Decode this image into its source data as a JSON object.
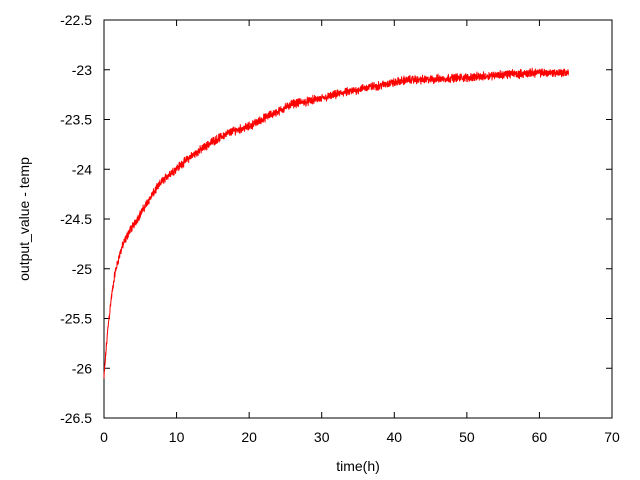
{
  "chart_data": {
    "type": "line",
    "title": "",
    "xlabel": "time(h)",
    "ylabel": "output_value - temp",
    "xlim": [
      0,
      70
    ],
    "ylim": [
      -26.5,
      -22.5
    ],
    "xticks": [
      0,
      10,
      20,
      30,
      40,
      50,
      60,
      70
    ],
    "yticks": [
      -26.5,
      -26,
      -25.5,
      -25,
      -24.5,
      -24,
      -23.5,
      -23,
      -22.5
    ],
    "xtick_labels": [
      "0",
      "10",
      "20",
      "30",
      "40",
      "50",
      "60",
      "70"
    ],
    "ytick_labels": [
      "-26.5",
      "-26",
      "-25.5",
      "-25",
      "-24.5",
      "-24",
      "-23.5",
      "-23",
      "-22.5"
    ],
    "grid": false,
    "legend": false,
    "series": [
      {
        "color": "#ff0000",
        "noise_amplitude": 0.05,
        "x": [
          0,
          0.3,
          0.6,
          1,
          1.5,
          2,
          2.5,
          3,
          3.5,
          4,
          5,
          6,
          7,
          8,
          9,
          10,
          11,
          12,
          13,
          14,
          15,
          16,
          17,
          18,
          19,
          20,
          21,
          22,
          23,
          24,
          25,
          26,
          27,
          28,
          29,
          30,
          31,
          32,
          33,
          34,
          35,
          36,
          37,
          38,
          39,
          40,
          41,
          42,
          43,
          44,
          45,
          46,
          47,
          48,
          49,
          50,
          51,
          52,
          53,
          54,
          55,
          56,
          57,
          58,
          59,
          60,
          61,
          62,
          63,
          64
        ],
        "y": [
          -26.1,
          -25.8,
          -25.55,
          -25.3,
          -25.05,
          -24.9,
          -24.78,
          -24.7,
          -24.62,
          -24.57,
          -24.45,
          -24.33,
          -24.22,
          -24.12,
          -24.05,
          -23.99,
          -23.93,
          -23.87,
          -23.82,
          -23.77,
          -23.72,
          -23.68,
          -23.64,
          -23.61,
          -23.59,
          -23.57,
          -23.53,
          -23.49,
          -23.45,
          -23.42,
          -23.38,
          -23.34,
          -23.33,
          -23.32,
          -23.3,
          -23.29,
          -23.27,
          -23.25,
          -23.23,
          -23.22,
          -23.2,
          -23.18,
          -23.17,
          -23.16,
          -23.14,
          -23.13,
          -23.11,
          -23.1,
          -23.1,
          -23.1,
          -23.1,
          -23.09,
          -23.09,
          -23.08,
          -23.08,
          -23.08,
          -23.07,
          -23.07,
          -23.06,
          -23.05,
          -23.05,
          -23.04,
          -23.04,
          -23.04,
          -23.03,
          -23.03,
          -23.03,
          -23.03,
          -23.03,
          -23.03
        ]
      }
    ]
  }
}
